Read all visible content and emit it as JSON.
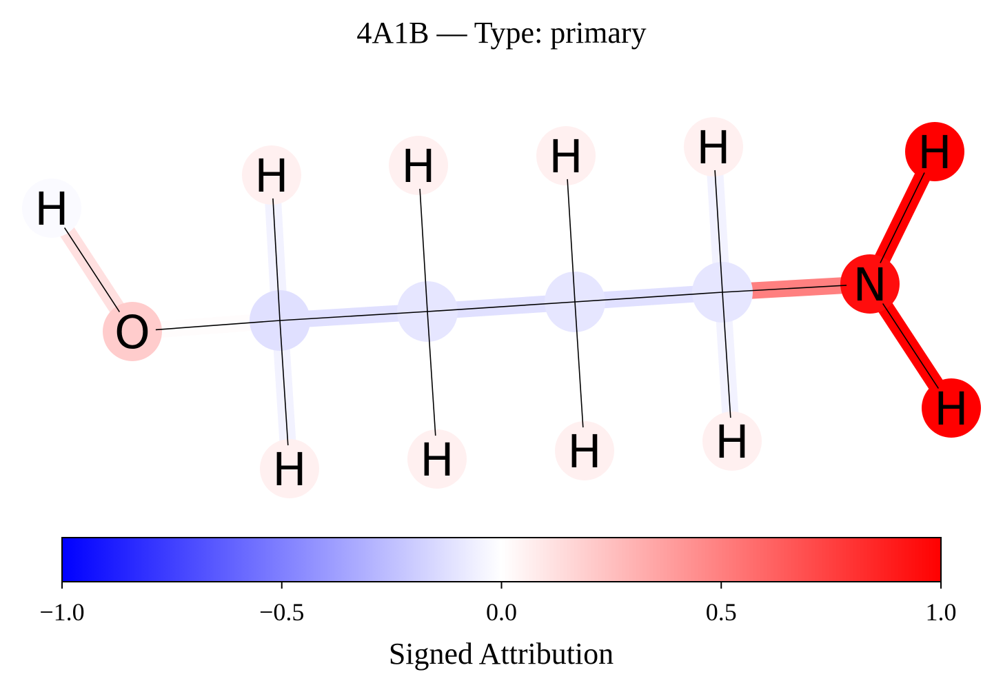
{
  "title": "4A1B — Type: primary",
  "molecule": {
    "atoms": [
      {
        "id": 0,
        "element": "H",
        "label": "H",
        "attribution": -0.02
      },
      {
        "id": 1,
        "element": "O",
        "label": "O",
        "attribution": 0.2
      },
      {
        "id": 2,
        "element": "C",
        "label": "",
        "attribution": -0.12
      },
      {
        "id": 3,
        "element": "H",
        "label": "H",
        "attribution": 0.06
      },
      {
        "id": 4,
        "element": "H",
        "label": "H",
        "attribution": 0.06
      },
      {
        "id": 5,
        "element": "C",
        "label": "",
        "attribution": -0.1
      },
      {
        "id": 6,
        "element": "H",
        "label": "H",
        "attribution": 0.06
      },
      {
        "id": 7,
        "element": "H",
        "label": "H",
        "attribution": 0.06
      },
      {
        "id": 8,
        "element": "C",
        "label": "",
        "attribution": -0.1
      },
      {
        "id": 9,
        "element": "H",
        "label": "H",
        "attribution": 0.06
      },
      {
        "id": 10,
        "element": "H",
        "label": "H",
        "attribution": 0.06
      },
      {
        "id": 11,
        "element": "C",
        "label": "",
        "attribution": -0.1
      },
      {
        "id": 12,
        "element": "H",
        "label": "H",
        "attribution": 0.06
      },
      {
        "id": 13,
        "element": "H",
        "label": "H",
        "attribution": 0.06
      },
      {
        "id": 14,
        "element": "N",
        "label": "N",
        "attribution": 0.95
      },
      {
        "id": 15,
        "element": "H",
        "label": "H",
        "attribution": 1.0
      },
      {
        "id": 16,
        "element": "H",
        "label": "H",
        "attribution": 1.0
      }
    ],
    "bonds": [
      {
        "a": 0,
        "b": 1,
        "attribution": 0.12
      },
      {
        "a": 1,
        "b": 2,
        "attribution": 0.01
      },
      {
        "a": 2,
        "b": 3,
        "attribution": -0.05
      },
      {
        "a": 2,
        "b": 4,
        "attribution": -0.05
      },
      {
        "a": 2,
        "b": 5,
        "attribution": -0.12
      },
      {
        "a": 5,
        "b": 6,
        "attribution": 0.0
      },
      {
        "a": 5,
        "b": 7,
        "attribution": 0.0
      },
      {
        "a": 5,
        "b": 8,
        "attribution": -0.12
      },
      {
        "a": 8,
        "b": 9,
        "attribution": 0.0
      },
      {
        "a": 8,
        "b": 10,
        "attribution": 0.0
      },
      {
        "a": 8,
        "b": 11,
        "attribution": -0.12
      },
      {
        "a": 11,
        "b": 12,
        "attribution": -0.05
      },
      {
        "a": 11,
        "b": 13,
        "attribution": -0.05
      },
      {
        "a": 11,
        "b": 14,
        "attribution": 0.5
      },
      {
        "a": 14,
        "b": 15,
        "attribution": 1.0
      },
      {
        "a": 14,
        "b": 16,
        "attribution": 1.0
      }
    ]
  },
  "colorbar": {
    "min": -1.0,
    "max": 1.0,
    "ticks": [
      -1.0,
      -0.5,
      0.0,
      0.5,
      1.0
    ],
    "tick_labels": [
      "−1.0",
      "−0.5",
      "0.0",
      "0.5",
      "1.0"
    ],
    "label": "Signed Attribution",
    "colormap": [
      "#0000ff",
      "#ffffff",
      "#ff0000"
    ]
  }
}
